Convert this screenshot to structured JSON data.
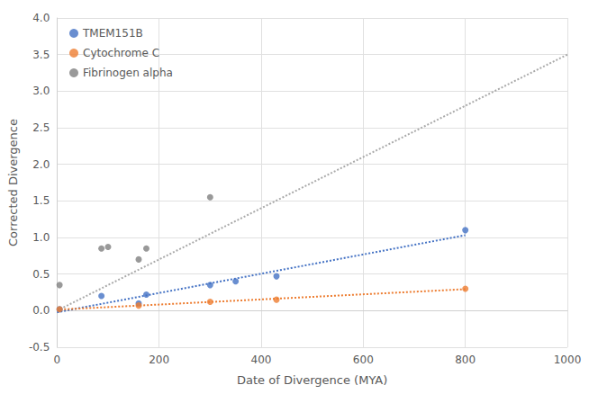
{
  "chart_data": {
    "type": "scatter",
    "xlabel": "Date of Divergence (MYA)",
    "ylabel": "Corrected Divergence",
    "xlim": [
      0,
      1000
    ],
    "ylim": [
      -0.5,
      4.0
    ],
    "xticks": [
      0,
      200,
      400,
      600,
      800,
      1000
    ],
    "yticks": [
      -0.5,
      {
        "value": 0,
        "label": "0.0"
      },
      0.5,
      {
        "value": 1,
        "label": "1.0"
      },
      1.5,
      {
        "value": 2,
        "label": "2.0"
      },
      2.5,
      {
        "value": 3,
        "label": "3.0"
      },
      3.5,
      {
        "value": 4,
        "label": "4.0"
      }
    ],
    "grid": true,
    "legend": "upper left",
    "series": [
      {
        "name": "TMEM151B",
        "type": "scatter",
        "marker": "circle",
        "color": "#4472C4",
        "x": [
          5,
          87,
          160,
          175,
          300,
          350,
          430,
          800
        ],
        "values": [
          0.02,
          0.2,
          0.1,
          0.22,
          0.35,
          0.4,
          0.47,
          1.1
        ]
      },
      {
        "name": "Cytochrome C",
        "type": "scatter",
        "marker": "circle",
        "color": "#ED7D31",
        "x": [
          5,
          160,
          300,
          430,
          800
        ],
        "values": [
          0.02,
          0.07,
          0.12,
          0.15,
          0.3
        ]
      },
      {
        "name": "Fibrinogen alpha",
        "type": "scatter",
        "marker": "circle",
        "color": "#808080",
        "x": [
          5,
          87,
          100,
          160,
          175,
          300
        ],
        "values": [
          0.35,
          0.85,
          0.87,
          0.7,
          0.85,
          1.55
        ]
      },
      {
        "type": "line",
        "line_style": "dotted",
        "color": "#4472C4",
        "x": [
          0,
          800
        ],
        "values": [
          -0.022434,
          1.031565
        ]
      },
      {
        "type": "line",
        "line_style": "dotted",
        "color": "#ED7D31",
        "x": [
          0,
          800
        ],
        "values": [
          0.013361,
          0.293335
        ]
      },
      {
        "type": "line",
        "line_style": "dotted",
        "color": "#AAAAAA",
        "x": [
          0,
          1000
        ],
        "values": [
          0.0,
          3.5
        ]
      }
    ]
  }
}
